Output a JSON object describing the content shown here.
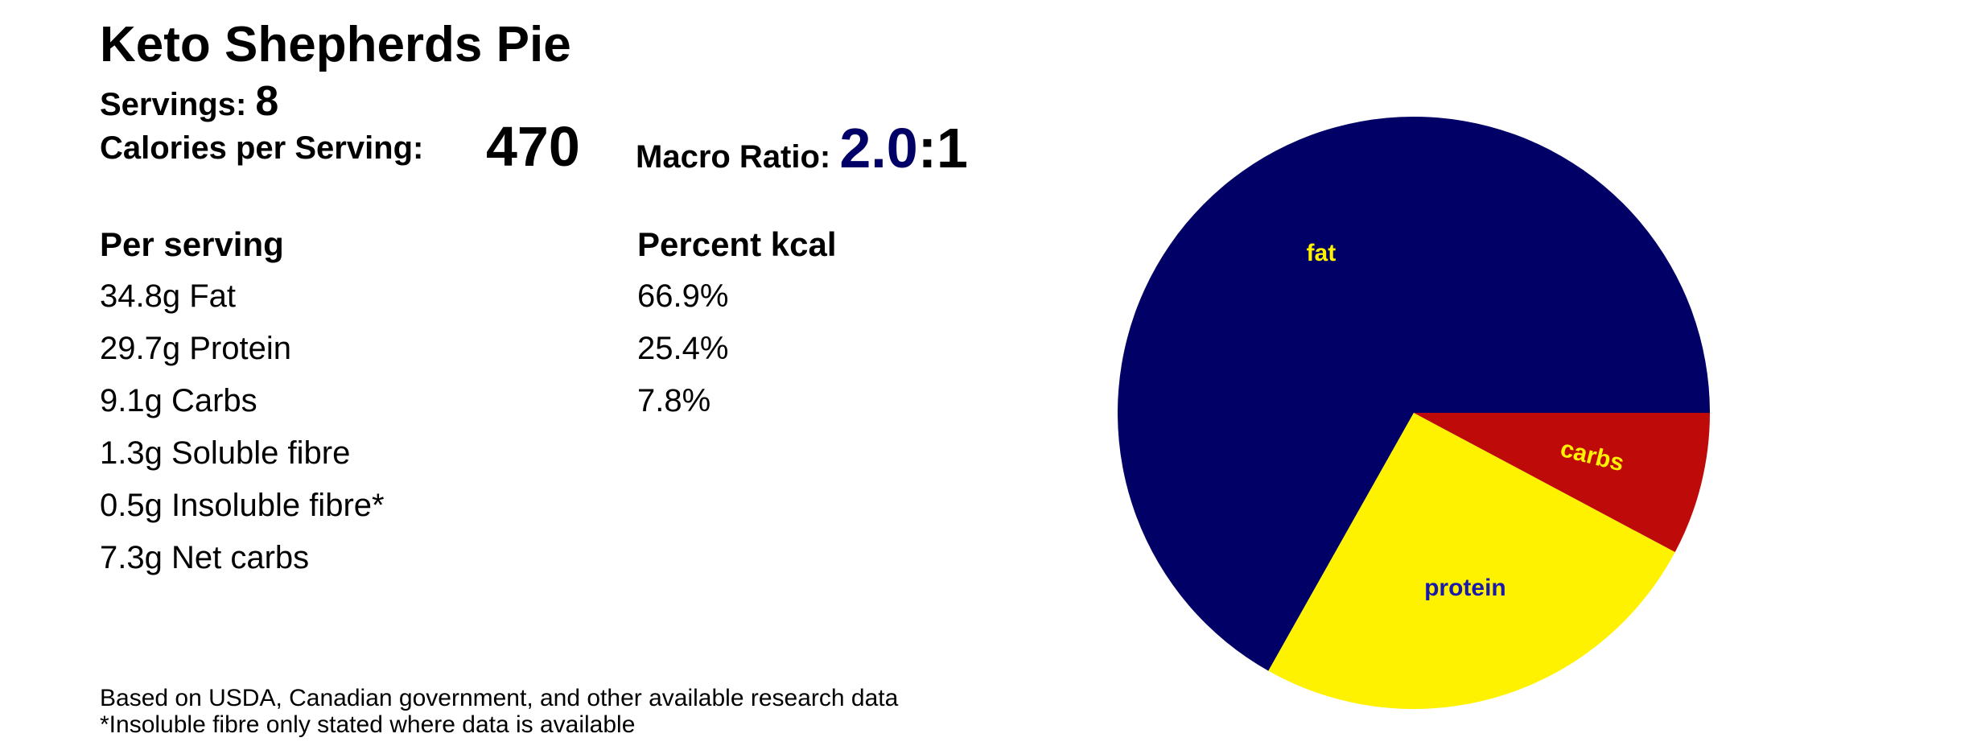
{
  "recipe": {
    "title": "Keto Shepherds Pie",
    "servings_label": "Servings:",
    "servings_value": "8",
    "calories_label": "Calories per Serving:",
    "calories_value": "470",
    "macro_label": "Macro Ratio:",
    "macro_ratio_value": "2.0",
    "macro_ratio_suffix": ":1"
  },
  "table": {
    "per_serving_header": "Per serving",
    "percent_header": "Percent kcal",
    "per_serving_rows": [
      "34.8g Fat",
      "29.7g Protein",
      "9.1g Carbs",
      "1.3g Soluble fibre",
      "0.5g Insoluble fibre*",
      "7.3g Net carbs"
    ],
    "percent_rows": [
      "66.9%",
      "25.4%",
      "7.8%"
    ]
  },
  "footnotes": [
    "Based on USDA, Canadian government, and other available research data",
    "*Insoluble fibre only stated where data is available"
  ],
  "colors": {
    "fat": "#000066",
    "protein": "#FFF200",
    "carbs": "#BF0A0A",
    "ratio_text": "#000066",
    "fat_label": "#FFF200",
    "protein_label": "#1A1AAA",
    "carbs_label": "#FFF200"
  },
  "chart_data": {
    "type": "pie",
    "categories": [
      "fat",
      "protein",
      "carbs"
    ],
    "values": [
      66.9,
      25.4,
      7.8
    ],
    "start_angle_deg": 0,
    "direction": "counterclockwise",
    "slice_labels": [
      "fat",
      "protein",
      "carbs"
    ]
  }
}
